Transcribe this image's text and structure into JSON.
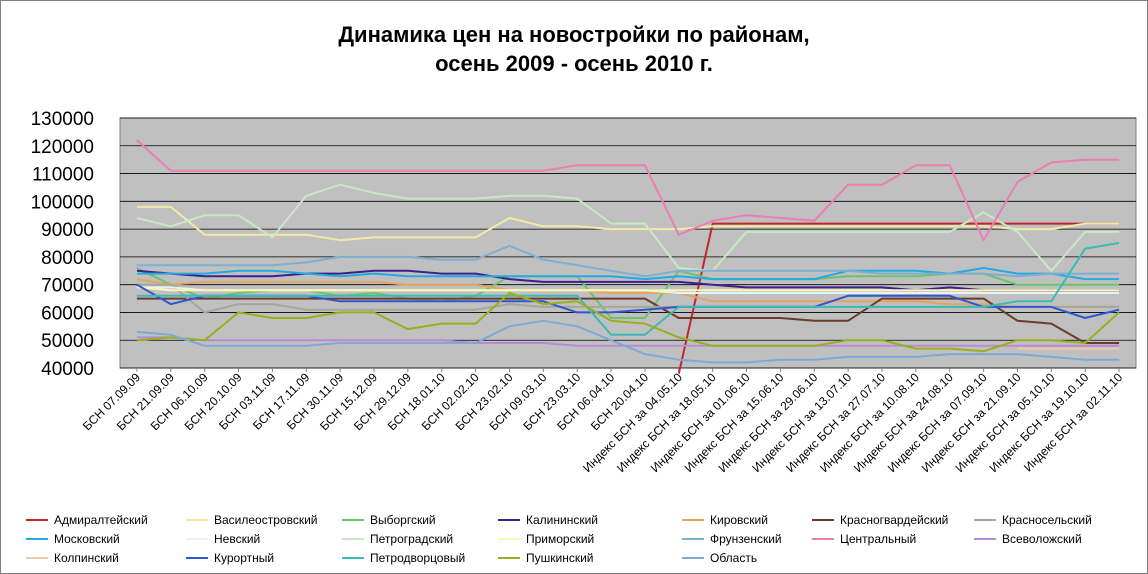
{
  "chart_data": {
    "type": "line",
    "title": [
      "Динамика цен на новостройки по районам,",
      "осень 2009 - осень 2010 г."
    ],
    "ylim": [
      40000,
      130000
    ],
    "yticks": [
      40000,
      50000,
      60000,
      70000,
      80000,
      90000,
      100000,
      110000,
      120000,
      130000
    ],
    "grid": true,
    "legend_position": "bottom",
    "x_labels": [
      "БСН 07.09.09",
      "БСН 21.09.09",
      "БСН 06.10.09",
      "БСН 20.10.09",
      "БСН 03.11.09",
      "БСН 17.11.09",
      "БСН 30.11.09",
      "БСН 15.12.09",
      "БСН 29.12.09",
      "БСН 18.01.10",
      "БСН 02.02.10",
      "БСН 23.02.10",
      "БСН 09.03.10",
      "БСН 23.03.10",
      "БСН 06.04.10",
      "БСН 20.04.10",
      "Индекс БСН за 04.05.10",
      "Индекс БСН за 18.05.10",
      "Индекс БСН за 01.06.10",
      "Индекс БСН за 15.06.10",
      "Индекс БСН за 29.06.10",
      "Индекс БСН за 13.07.10",
      "Индекс БСН за 27.07.10",
      "Индекс БСН за 10.08.10",
      "Индекс БСН за 24.08.10",
      "Индекс БСН за 07.09.10",
      "Индекс БСН за 21.09.10",
      "Индекс БСН за 05.10.10",
      "Индекс БСН за 19.10.10",
      "Индекс БСН за 02.11.10"
    ],
    "series": [
      {
        "name": "Адмиралтейский",
        "color": "#c0272d",
        "values": [
          null,
          null,
          null,
          null,
          null,
          null,
          null,
          null,
          null,
          null,
          null,
          null,
          null,
          null,
          null,
          null,
          38000,
          92000,
          92000,
          92000,
          92000,
          92000,
          92000,
          92000,
          92000,
          92000,
          92000,
          92000,
          92000,
          92000
        ]
      },
      {
        "name": "Василеостровский",
        "color": "#f3e9a6",
        "values": [
          98000,
          98000,
          88000,
          88000,
          88000,
          88000,
          86000,
          87000,
          87000,
          87000,
          87000,
          94000,
          91000,
          91000,
          90000,
          90000,
          90000,
          91000,
          91000,
          91000,
          91000,
          91000,
          91000,
          91000,
          91000,
          91000,
          90000,
          90000,
          92000,
          92000
        ]
      },
      {
        "name": "Выборгский",
        "color": "#6cc46a",
        "values": [
          76000,
          70000,
          65000,
          67000,
          68000,
          68000,
          66000,
          67000,
          65000,
          64000,
          66000,
          73000,
          73000,
          73000,
          58000,
          58000,
          75000,
          72000,
          72000,
          72000,
          72000,
          73000,
          73000,
          73000,
          74000,
          74000,
          70000,
          70000,
          70000,
          70000
        ]
      },
      {
        "name": "Калининский",
        "color": "#3d1f8f",
        "values": [
          75000,
          74000,
          73000,
          73000,
          73000,
          74000,
          74000,
          75000,
          75000,
          74000,
          74000,
          72000,
          71000,
          71000,
          71000,
          71000,
          71000,
          70000,
          69000,
          69000,
          69000,
          69000,
          69000,
          68000,
          69000,
          68000,
          68000,
          68000,
          68000,
          68000
        ]
      },
      {
        "name": "Кировский",
        "color": "#e1a65b",
        "values": [
          72000,
          70000,
          71000,
          71000,
          71000,
          71000,
          71000,
          71000,
          70000,
          70000,
          70000,
          68000,
          68000,
          68000,
          67000,
          67000,
          67000,
          64000,
          64000,
          64000,
          64000,
          64000,
          64000,
          64000,
          63000,
          63000,
          62000,
          62000,
          62000,
          62000
        ]
      },
      {
        "name": "Красногвардейский",
        "color": "#6b3b2c",
        "values": [
          65000,
          65000,
          65000,
          65000,
          65000,
          65000,
          65000,
          65000,
          65000,
          65000,
          65000,
          65000,
          65000,
          65000,
          65000,
          65000,
          58000,
          58000,
          58000,
          58000,
          57000,
          57000,
          65000,
          65000,
          65000,
          65000,
          57000,
          56000,
          49000,
          49000
        ]
      },
      {
        "name": "Красносельский",
        "color": "#a6a69a",
        "values": [
          70000,
          70000,
          60000,
          63000,
          63000,
          61000,
          61000,
          61000,
          61000,
          61000,
          61000,
          63000,
          62000,
          62000,
          62000,
          62000,
          62000,
          62000,
          62000,
          62000,
          62000,
          62000,
          62000,
          62000,
          62000,
          62000,
          62000,
          62000,
          62000,
          62000
        ]
      },
      {
        "name": "Московский",
        "color": "#25a9e1",
        "values": [
          74000,
          74000,
          74000,
          75000,
          75000,
          74000,
          73000,
          74000,
          73000,
          73000,
          73000,
          73000,
          73000,
          73000,
          73000,
          72000,
          73000,
          72000,
          72000,
          72000,
          72000,
          75000,
          75000,
          75000,
          74000,
          76000,
          74000,
          74000,
          72000,
          72000
        ]
      },
      {
        "name": "Невский",
        "color": "#e5f3fa",
        "values": [
          69000,
          69000,
          68000,
          68000,
          68000,
          68000,
          68000,
          68000,
          68000,
          68000,
          68000,
          68000,
          68000,
          68000,
          68000,
          68000,
          67000,
          67000,
          67000,
          67000,
          67000,
          67000,
          67000,
          67000,
          67000,
          67000,
          67000,
          67000,
          67000,
          67000
        ]
      },
      {
        "name": "Петроградский",
        "color": "#c7e8c2",
        "values": [
          94000,
          91000,
          95000,
          95000,
          87000,
          102000,
          106000,
          103000,
          101000,
          101000,
          101000,
          102000,
          102000,
          101000,
          92000,
          92000,
          76000,
          75000,
          89000,
          89000,
          89000,
          89000,
          89000,
          89000,
          89000,
          96000,
          89000,
          75000,
          89000,
          89000
        ]
      },
      {
        "name": "Приморский",
        "color": "#fdf6b5",
        "values": [
          69000,
          68000,
          68000,
          68000,
          68000,
          68000,
          68000,
          68000,
          68000,
          68000,
          68000,
          68000,
          68000,
          68000,
          68000,
          68000,
          68000,
          68000,
          68000,
          68000,
          68000,
          68000,
          68000,
          68000,
          68000,
          68000,
          68000,
          68000,
          68000,
          68000
        ]
      },
      {
        "name": "Фрунзенский",
        "color": "#7faed1",
        "values": [
          77000,
          77000,
          77000,
          77000,
          77000,
          78000,
          80000,
          80000,
          80000,
          79000,
          79000,
          84000,
          79000,
          77000,
          75000,
          73000,
          75000,
          75000,
          75000,
          75000,
          75000,
          75000,
          74000,
          74000,
          74000,
          74000,
          73000,
          74000,
          74000,
          74000
        ]
      },
      {
        "name": "Центральный",
        "color": "#e97fb3",
        "values": [
          122000,
          111000,
          111000,
          111000,
          111000,
          111000,
          111000,
          111000,
          111000,
          111000,
          111000,
          111000,
          111000,
          113000,
          113000,
          113000,
          88000,
          93000,
          95000,
          94000,
          93000,
          106000,
          106000,
          113000,
          113000,
          86000,
          107000,
          114000,
          115000,
          115000
        ]
      },
      {
        "name": "Всеволожский",
        "color": "#b98ad6",
        "values": [
          51000,
          51000,
          50000,
          50000,
          50000,
          50000,
          50000,
          50000,
          50000,
          50000,
          49000,
          49000,
          49000,
          48000,
          48000,
          48000,
          48000,
          48000,
          48000,
          48000,
          48000,
          48000,
          48000,
          48000,
          48000,
          48000,
          48000,
          48000,
          48000,
          48000
        ]
      },
      {
        "name": "Колпинский",
        "color": "#f2c7a6",
        "values": [
          null,
          null,
          null,
          null,
          null,
          null,
          null,
          null,
          null,
          null,
          null,
          null,
          null,
          null,
          null,
          null,
          null,
          null,
          null,
          null,
          null,
          null,
          null,
          null,
          null,
          null,
          47000,
          47000,
          47000,
          47000
        ]
      },
      {
        "name": "Курортный",
        "color": "#2f57d0",
        "values": [
          70000,
          63000,
          66000,
          66000,
          66000,
          66000,
          64000,
          64000,
          64000,
          64000,
          64000,
          64000,
          64000,
          60000,
          60000,
          61000,
          62000,
          62000,
          62000,
          62000,
          62000,
          66000,
          66000,
          66000,
          66000,
          62000,
          62000,
          62000,
          58000,
          61000
        ]
      },
      {
        "name": "Петродворцовый",
        "color": "#3bbab8",
        "values": [
          66000,
          66000,
          66000,
          66000,
          66000,
          66000,
          66000,
          66000,
          66000,
          66000,
          66000,
          66000,
          66000,
          66000,
          52000,
          52000,
          62000,
          62000,
          62000,
          62000,
          62000,
          62000,
          62000,
          62000,
          62000,
          62000,
          64000,
          64000,
          83000,
          85000
        ]
      },
      {
        "name": "Пушкинский",
        "color": "#9aaf1e",
        "values": [
          50000,
          51000,
          50000,
          60000,
          58000,
          58000,
          60000,
          60000,
          54000,
          56000,
          56000,
          67000,
          63000,
          64000,
          57000,
          56000,
          51000,
          48000,
          48000,
          48000,
          48000,
          50000,
          50000,
          47000,
          47000,
          46000,
          50000,
          50000,
          49000,
          60000
        ]
      },
      {
        "name": "Область",
        "color": "#7ea9d6",
        "values": [
          53000,
          52000,
          48000,
          48000,
          48000,
          48000,
          49000,
          49000,
          49000,
          49000,
          49000,
          55000,
          57000,
          55000,
          50000,
          45000,
          43000,
          42000,
          42000,
          43000,
          43000,
          44000,
          44000,
          44000,
          45000,
          45000,
          45000,
          44000,
          43000,
          43000
        ]
      }
    ]
  }
}
